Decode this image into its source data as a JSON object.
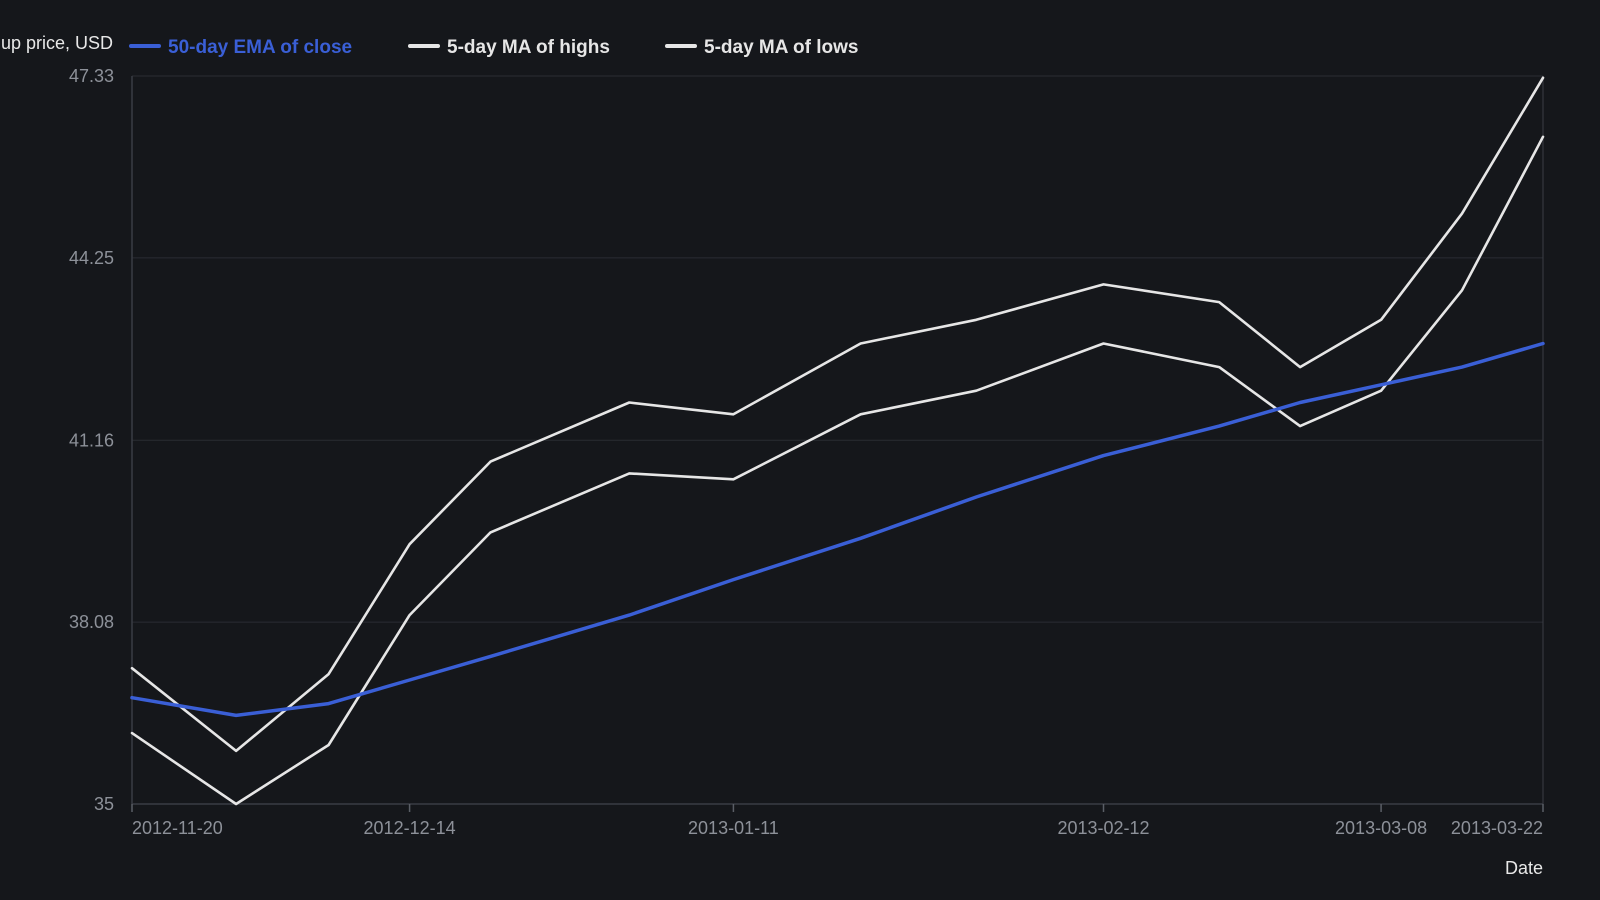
{
  "chart_data": {
    "type": "line",
    "ylabel": "up price, USD",
    "xlabel": "Date",
    "ylim": [
      35,
      47.33
    ],
    "yticks": [
      "35",
      "38.08",
      "41.16",
      "44.25",
      "47.33"
    ],
    "xticks": [
      "2012-11-20",
      "2012-12-14",
      "2013-01-11",
      "2013-02-12",
      "2013-03-08",
      "2013-03-22"
    ],
    "grid": "horizontal",
    "legend_position": "top",
    "x": [
      "2012-11-20",
      "2012-11-29",
      "2012-12-07",
      "2012-12-14",
      "2012-12-21",
      "2013-01-02",
      "2013-01-11",
      "2013-01-22",
      "2013-02-01",
      "2013-02-12",
      "2013-02-22",
      "2013-03-01",
      "2013-03-08",
      "2013-03-15",
      "2013-03-22"
    ],
    "series": [
      {
        "name": "50-day EMA of close",
        "color": "#3a5fd6",
        "values": [
          36.8,
          36.5,
          36.7,
          37.1,
          37.5,
          38.2,
          38.8,
          39.5,
          40.2,
          40.9,
          41.4,
          41.8,
          42.1,
          42.4,
          42.8
        ]
      },
      {
        "name": "5-day MA of highs",
        "color": "#e6e6e6",
        "values": [
          37.3,
          35.9,
          37.2,
          39.4,
          40.8,
          41.8,
          41.6,
          42.8,
          43.2,
          43.8,
          43.5,
          42.4,
          43.2,
          45.0,
          47.3
        ]
      },
      {
        "name": "5-day MA of lows",
        "color": "#e6e6e6",
        "values": [
          36.2,
          35.0,
          36.0,
          38.2,
          39.6,
          40.6,
          40.5,
          41.6,
          42.0,
          42.8,
          42.4,
          41.4,
          42.0,
          43.7,
          46.3
        ]
      }
    ]
  }
}
